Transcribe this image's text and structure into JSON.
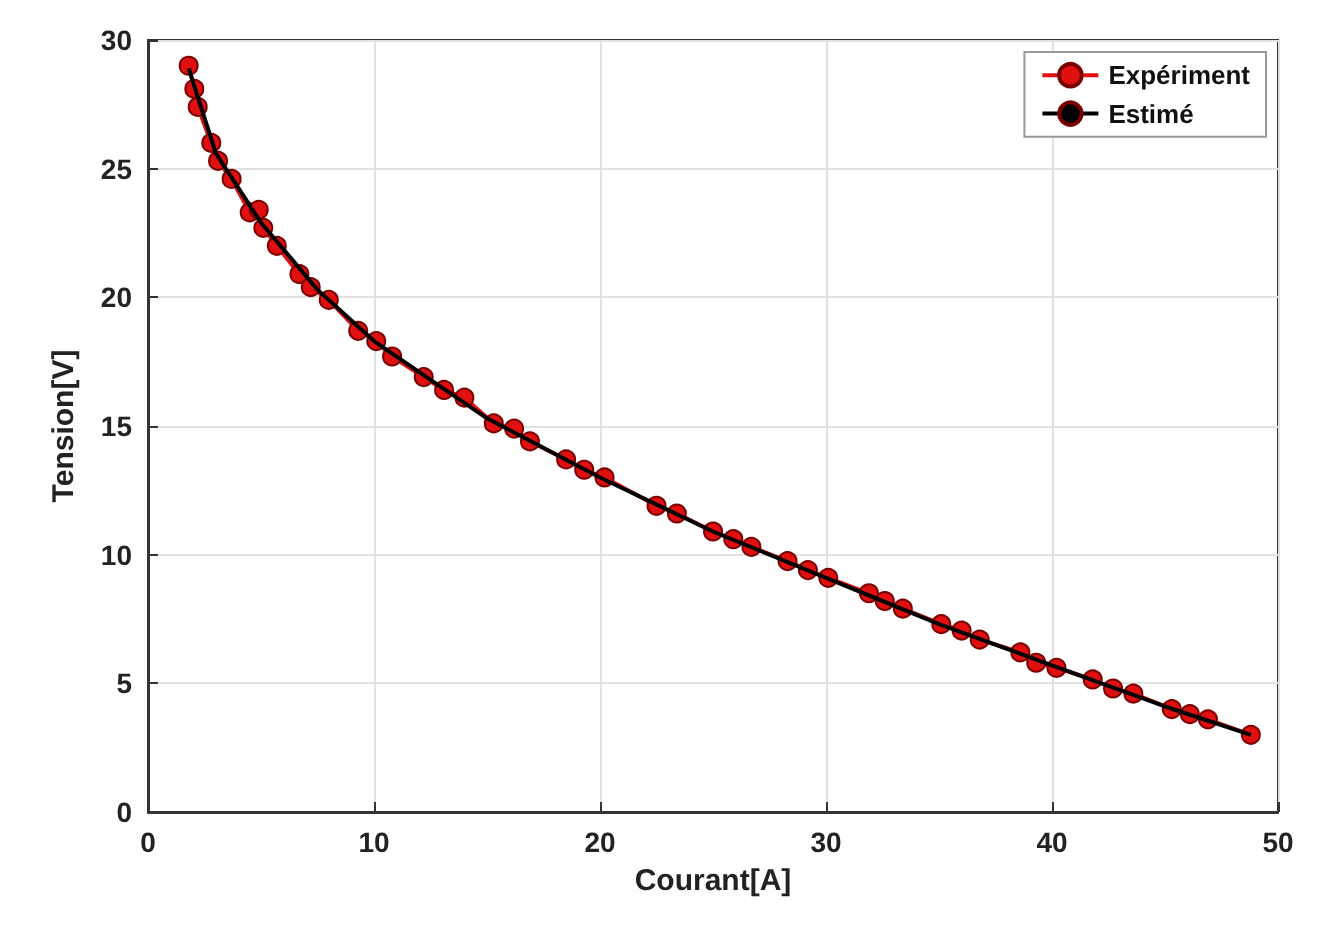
{
  "chart_data": {
    "type": "line",
    "xlabel": "Courant[A]",
    "ylabel": "Tension[V]",
    "xlim": [
      0,
      50
    ],
    "xticks": [
      0,
      10,
      20,
      30,
      40,
      50
    ],
    "ylim": [
      0,
      30
    ],
    "yticks": [
      0,
      5,
      10,
      15,
      20,
      25,
      30
    ],
    "grid": true,
    "legend": "top right",
    "series": [
      {
        "name": "Expériment",
        "color": "#e01010",
        "marker": "circle",
        "x": [
          1.8,
          2.05,
          2.2,
          2.8,
          3.1,
          3.7,
          4.5,
          4.9,
          5.1,
          5.7,
          6.7,
          7.2,
          8.0,
          9.3,
          10.1,
          10.8,
          12.2,
          13.1,
          14.0,
          15.3,
          16.2,
          16.9,
          18.5,
          19.3,
          20.2,
          22.5,
          23.4,
          25.0,
          25.9,
          26.7,
          28.3,
          29.2,
          30.1,
          31.9,
          32.6,
          33.4,
          35.1,
          36.0,
          36.8,
          38.6,
          39.3,
          40.2,
          41.8,
          42.7,
          43.6,
          45.3,
          46.1,
          46.9,
          48.8
        ],
        "values": [
          29.0,
          28.1,
          27.4,
          26.0,
          25.3,
          24.6,
          23.3,
          23.4,
          22.7,
          22.0,
          20.9,
          20.4,
          19.9,
          18.7,
          18.3,
          17.7,
          16.9,
          16.4,
          16.1,
          15.1,
          14.9,
          14.4,
          13.7,
          13.3,
          13.0,
          11.9,
          11.6,
          10.9,
          10.6,
          10.3,
          9.75,
          9.4,
          9.1,
          8.5,
          8.2,
          7.9,
          7.3,
          7.05,
          6.7,
          6.2,
          5.8,
          5.6,
          5.15,
          4.8,
          4.6,
          4.0,
          3.8,
          3.6,
          3.0
        ]
      },
      {
        "name": "Estimé",
        "color": "#000000",
        "marker": "none",
        "x": [
          1.8,
          3,
          5,
          7.5,
          10,
          15,
          20,
          25,
          30,
          35,
          40,
          45,
          48.8
        ],
        "values": [
          28.9,
          25.6,
          22.9,
          20.3,
          18.3,
          15.3,
          13.0,
          10.9,
          9.1,
          7.3,
          5.7,
          4.1,
          3.0
        ]
      }
    ]
  }
}
